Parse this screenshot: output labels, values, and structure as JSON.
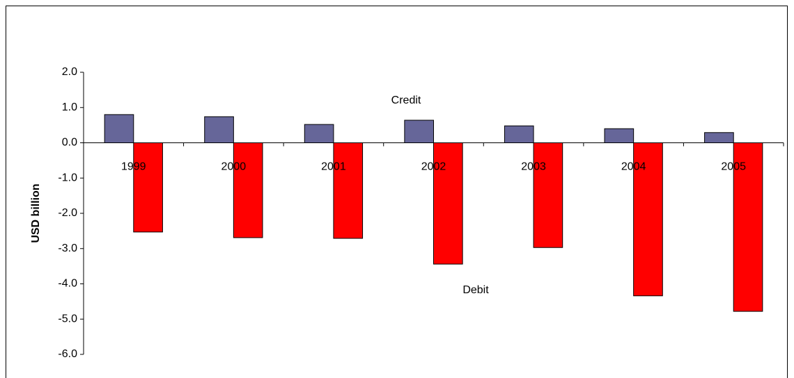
{
  "chart_data": {
    "type": "bar",
    "y_label": "USD billion",
    "categories": [
      "1999",
      "2000",
      "2001",
      "2002",
      "2003",
      "2004",
      "2005"
    ],
    "series": [
      {
        "name": "Credit",
        "color": "#666699",
        "values": [
          0.8,
          0.74,
          0.52,
          0.64,
          0.48,
          0.4,
          0.29
        ]
      },
      {
        "name": "Debit",
        "color": "#ff0000",
        "values": [
          -2.53,
          -2.69,
          -2.71,
          -3.44,
          -2.97,
          -4.34,
          -4.78
        ]
      }
    ],
    "ylim": [
      -6,
      2
    ],
    "yticks": [
      {
        "value": -6,
        "label": "-6.0"
      },
      {
        "value": -5,
        "label": "-5.0"
      },
      {
        "value": -4,
        "label": "-4.0"
      },
      {
        "value": -3,
        "label": "-3.0"
      },
      {
        "value": -2,
        "label": "-2.0"
      },
      {
        "value": -1,
        "label": "-1.0"
      },
      {
        "value": 0,
        "label": "0.0"
      },
      {
        "value": 1,
        "label": "1.0"
      },
      {
        "value": 2,
        "label": "2.0"
      }
    ],
    "grid": false
  }
}
